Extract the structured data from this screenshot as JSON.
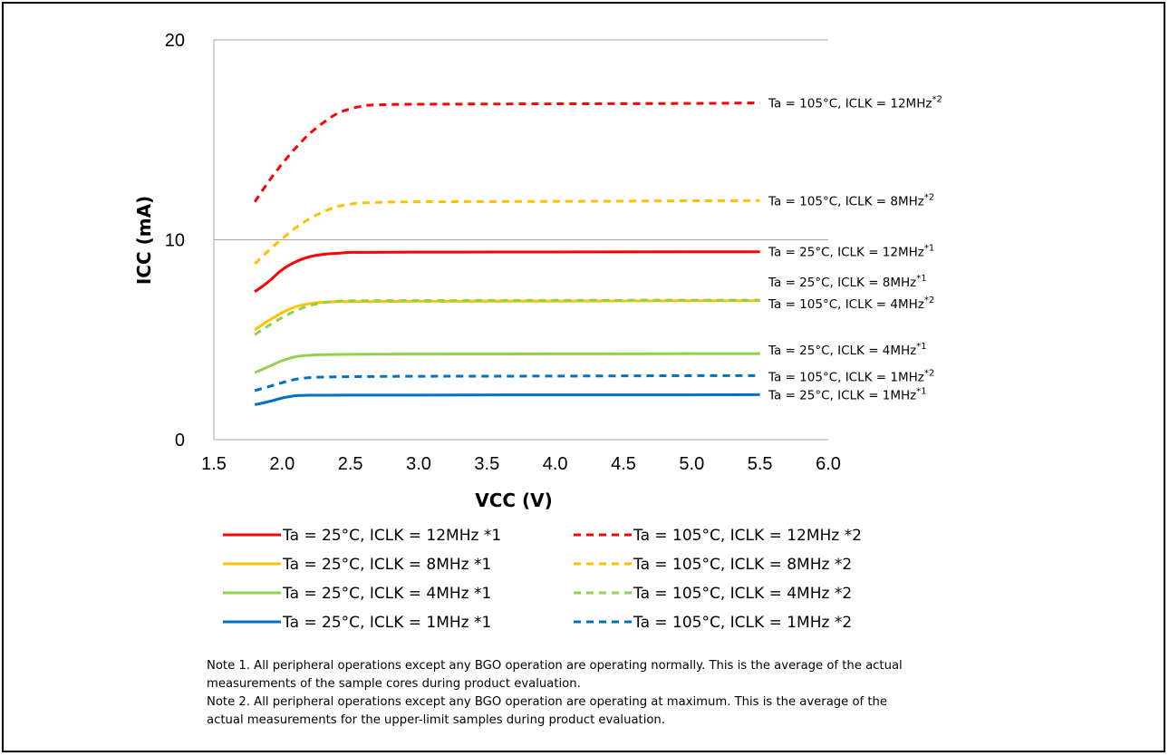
{
  "chart_data": {
    "type": "line",
    "title": "",
    "xlabel": "VCC (V)",
    "ylabel": "ICC (mA)",
    "xlim": [
      1.5,
      6.0
    ],
    "ylim": [
      0,
      20
    ],
    "x_ticks": [
      "1.5",
      "2.0",
      "2.5",
      "3.0",
      "3.5",
      "4.0",
      "4.5",
      "5.0",
      "5.5",
      "6.0"
    ],
    "y_ticks": [
      "0",
      "10",
      "20"
    ],
    "grid": "horizontal",
    "legend_position": "bottom",
    "series": [
      {
        "name": "Ta = 25°C, ICLK = 12MHz *1",
        "annotation": "Ta = 25°C, ICLK = 12MHz",
        "note_ref": "*1",
        "color": "#ff0000",
        "dash": "solid",
        "x": [
          1.8,
          1.9,
          2.0,
          2.1,
          2.2,
          2.3,
          2.4,
          2.5,
          2.6,
          3.0,
          4.0,
          5.0,
          5.5
        ],
        "y": [
          7.4,
          7.9,
          8.5,
          8.9,
          9.15,
          9.27,
          9.32,
          9.37,
          9.37,
          9.38,
          9.39,
          9.4,
          9.4
        ]
      },
      {
        "name": "Ta = 105°C, ICLK = 12MHz *2",
        "annotation": "Ta = 105°C, ICLK = 12MHz",
        "note_ref": "*2",
        "color": "#ff0000",
        "dash": "dashed",
        "x": [
          1.8,
          1.9,
          2.0,
          2.1,
          2.2,
          2.3,
          2.4,
          2.5,
          2.6,
          2.7,
          3.0,
          4.0,
          5.0,
          5.5
        ],
        "y": [
          11.9,
          12.9,
          13.8,
          14.6,
          15.3,
          15.85,
          16.3,
          16.55,
          16.7,
          16.75,
          16.78,
          16.8,
          16.82,
          16.85
        ]
      },
      {
        "name": "Ta = 25°C, ICLK = 8MHz *1",
        "annotation": "Ta = 25°C, ICLK = 8MHz",
        "note_ref": "*1",
        "color": "#ffc000",
        "dash": "solid",
        "x": [
          1.8,
          1.9,
          2.0,
          2.1,
          2.2,
          2.3,
          2.4,
          3.0,
          4.0,
          5.0,
          5.5
        ],
        "y": [
          5.5,
          5.95,
          6.35,
          6.65,
          6.8,
          6.87,
          6.9,
          6.92,
          6.93,
          6.95,
          6.95
        ]
      },
      {
        "name": "Ta = 105°C, ICLK = 8MHz *2",
        "annotation": "Ta = 105°C, ICLK = 8MHz",
        "note_ref": "*2",
        "color": "#ffc000",
        "dash": "dashed",
        "x": [
          1.8,
          1.9,
          2.0,
          2.1,
          2.2,
          2.3,
          2.4,
          2.5,
          2.6,
          3.0,
          4.0,
          5.0,
          5.5
        ],
        "y": [
          8.8,
          9.45,
          10.05,
          10.6,
          11.05,
          11.4,
          11.65,
          11.78,
          11.85,
          11.9,
          11.92,
          11.95,
          11.96
        ]
      },
      {
        "name": "Ta = 25°C, ICLK = 4MHz *1",
        "annotation": "Ta = 25°C, ICLK = 4MHz",
        "note_ref": "*1",
        "color": "#92d050",
        "dash": "solid",
        "x": [
          1.8,
          1.9,
          2.0,
          2.1,
          2.2,
          2.3,
          2.5,
          3.0,
          4.0,
          5.0,
          5.5
        ],
        "y": [
          3.35,
          3.65,
          3.95,
          4.15,
          4.22,
          4.25,
          4.27,
          4.28,
          4.29,
          4.3,
          4.3
        ]
      },
      {
        "name": "Ta = 105°C, ICLK = 4MHz *2",
        "annotation": "Ta = 105°C, ICLK = 4MHz",
        "note_ref": "*2",
        "color": "#92d050",
        "dash": "dashed",
        "x": [
          1.8,
          1.9,
          2.0,
          2.1,
          2.2,
          2.3,
          2.4,
          2.5,
          3.0,
          4.0,
          5.0,
          5.5
        ],
        "y": [
          5.25,
          5.7,
          6.1,
          6.45,
          6.7,
          6.85,
          6.92,
          6.95,
          6.96,
          6.97,
          6.98,
          6.98
        ]
      },
      {
        "name": "Ta = 25°C, ICLK = 1MHz *1",
        "annotation": "Ta = 25°C, ICLK = 1MHz",
        "note_ref": "*1",
        "color": "#0070c0",
        "dash": "solid",
        "x": [
          1.8,
          1.9,
          2.0,
          2.1,
          2.2,
          2.3,
          2.5,
          3.0,
          4.0,
          5.0,
          5.5
        ],
        "y": [
          1.75,
          1.9,
          2.08,
          2.2,
          2.22,
          2.22,
          2.23,
          2.23,
          2.24,
          2.24,
          2.25
        ]
      },
      {
        "name": "Ta = 105°C, ICLK = 1MHz *2",
        "annotation": "Ta = 105°C, ICLK = 1MHz",
        "note_ref": "*2",
        "color": "#0070c0",
        "dash": "dashed",
        "x": [
          1.8,
          1.9,
          2.0,
          2.1,
          2.2,
          2.3,
          2.5,
          3.0,
          4.0,
          5.0,
          5.5
        ],
        "y": [
          2.45,
          2.65,
          2.85,
          3.02,
          3.1,
          3.13,
          3.15,
          3.17,
          3.18,
          3.2,
          3.2
        ]
      }
    ],
    "legend_order": [
      0,
      1,
      2,
      3,
      4,
      5,
      6,
      7
    ]
  },
  "notes": {
    "note1_line1": "Note 1. All peripheral operations except any BGO operation are operating normally. This is the average of the actual",
    "note1_line2": "measurements of the sample cores during product evaluation.",
    "note2_line1": "Note 2. All peripheral operations except any BGO operation are operating at maximum. This is the average of the",
    "note2_line2": "actual measurements for the upper-limit samples during product evaluation."
  }
}
